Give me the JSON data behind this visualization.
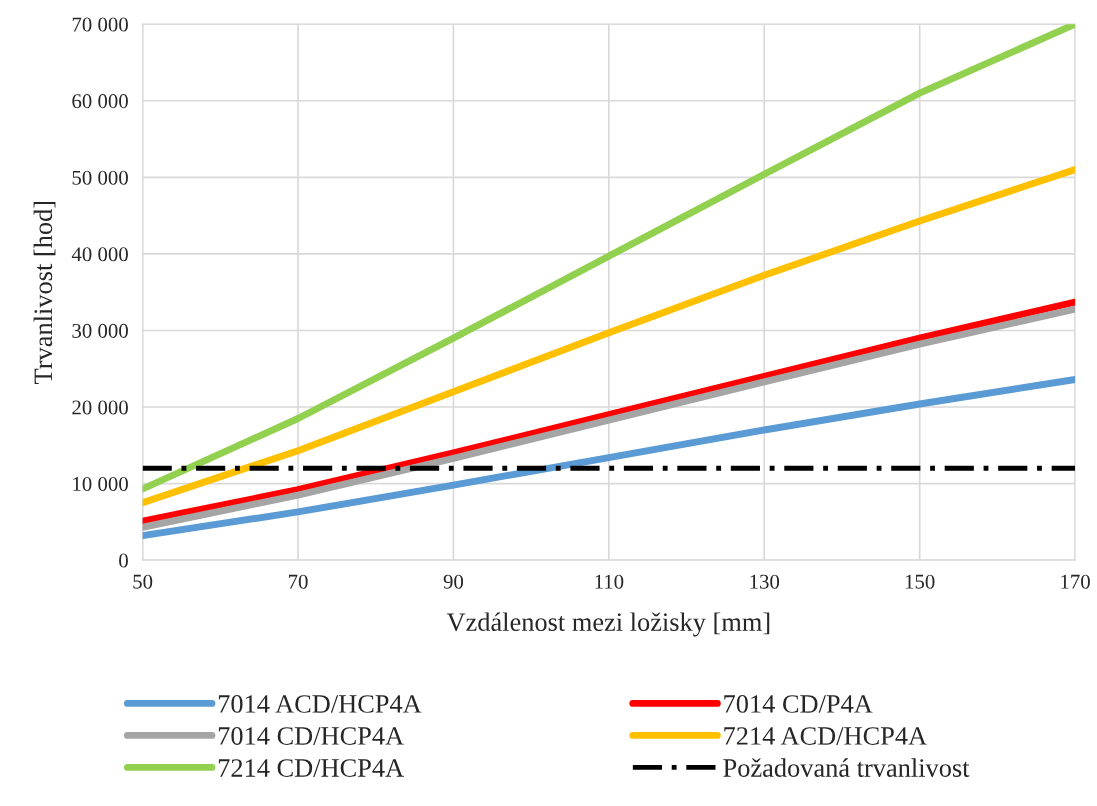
{
  "chart_data": {
    "type": "line",
    "xlabel": "Vzdálenost mezi ložisky [mm]",
    "ylabel": "Trvanlivost [hod]",
    "x": [
      50,
      70,
      90,
      110,
      130,
      150,
      170
    ],
    "series": [
      {
        "name": "7014 ACD/HCP4A",
        "color": "#5b9bd5",
        "values": [
          3200,
          6300,
          9800,
          13400,
          17000,
          20400,
          23600
        ]
      },
      {
        "name": "7014 CD/P4A",
        "color": "#ff0000",
        "values": [
          5100,
          9200,
          14000,
          19000,
          24000,
          29000,
          33700
        ]
      },
      {
        "name": "7014 CD/HCP4A",
        "color": "#a5a5a5",
        "values": [
          4300,
          8500,
          13300,
          18300,
          23300,
          28200,
          32800
        ]
      },
      {
        "name": "7214 ACD/HCP4A",
        "color": "#ffc000",
        "values": [
          7500,
          14300,
          22000,
          29700,
          37200,
          44300,
          51000
        ]
      },
      {
        "name": "7214 CD/HCP4A",
        "color": "#92d050",
        "values": [
          9300,
          18500,
          29000,
          39700,
          50400,
          61000,
          70000
        ]
      },
      {
        "name": "Požadovaná trvanlivost",
        "color": "#000000",
        "line_style": "dashdot",
        "values": [
          12000,
          12000,
          12000,
          12000,
          12000,
          12000,
          12000
        ]
      }
    ],
    "xlim": [
      50,
      170
    ],
    "xticks": [
      50,
      70,
      90,
      110,
      130,
      150,
      170
    ],
    "ylim": [
      0,
      70000
    ],
    "yticks": [
      {
        "value": 0,
        "label": "0"
      },
      {
        "value": 10000,
        "label": "10 000"
      },
      {
        "value": 20000,
        "label": "20 000"
      },
      {
        "value": 30000,
        "label": "30 000"
      },
      {
        "value": 40000,
        "label": "40 000"
      },
      {
        "value": 50000,
        "label": "50 000"
      },
      {
        "value": 60000,
        "label": "60 000"
      },
      {
        "value": 70000,
        "label": "70 000"
      }
    ],
    "grid": true,
    "legend": "bottom",
    "marker": "none"
  }
}
